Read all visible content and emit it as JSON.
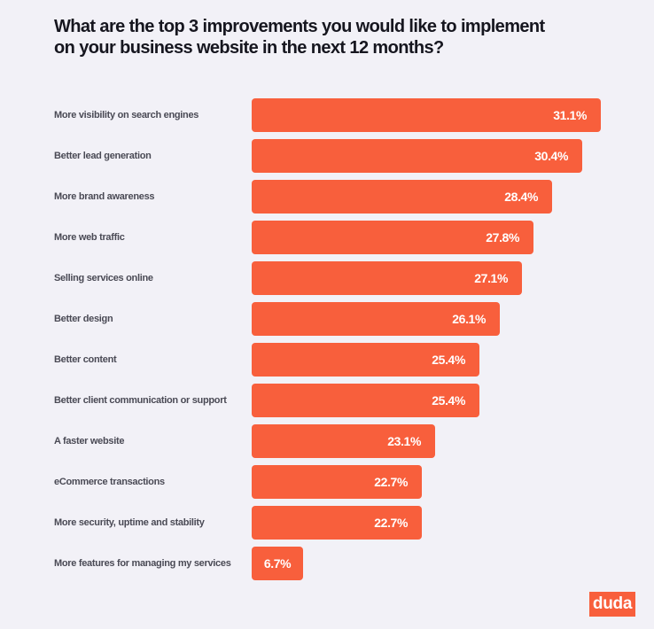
{
  "colors": {
    "background": "#f2f1f7",
    "bar": "#f85f3c",
    "title": "#16161f",
    "label": "#4a4a55",
    "value_text": "#ffffff",
    "logo_bg": "#f85f3c"
  },
  "brand": {
    "logo_text": "duda"
  },
  "chart_data": {
    "type": "bar",
    "orientation": "horizontal",
    "title_lines": [
      "What are the top 3 improvements you would like to implement",
      "on your business website in the next 12 months?"
    ],
    "title": "What are the top 3 improvements you would like to implement on your business website in the next 12 months?",
    "xlabel": "",
    "ylabel": "",
    "grid": false,
    "legend": "none",
    "unit": "%",
    "categories": [
      "More visibility on search engines",
      "Better lead generation",
      "More brand awareness",
      "More web traffic",
      "Selling services online",
      "Better design",
      "Better content",
      "Better client communication or support",
      "A faster website",
      "eCommerce transactions",
      "More security, uptime and stability",
      "More features for managing my services"
    ],
    "values": [
      31.1,
      30.4,
      28.4,
      27.8,
      27.1,
      26.1,
      25.4,
      25.4,
      23.1,
      22.7,
      22.7,
      6.7
    ],
    "value_labels": [
      "31.1%",
      "30.4%",
      "28.4%",
      "27.8%",
      "27.1%",
      "26.1%",
      "25.4%",
      "25.4%",
      "23.1%",
      "22.7%",
      "22.7%",
      "6.7%"
    ]
  }
}
